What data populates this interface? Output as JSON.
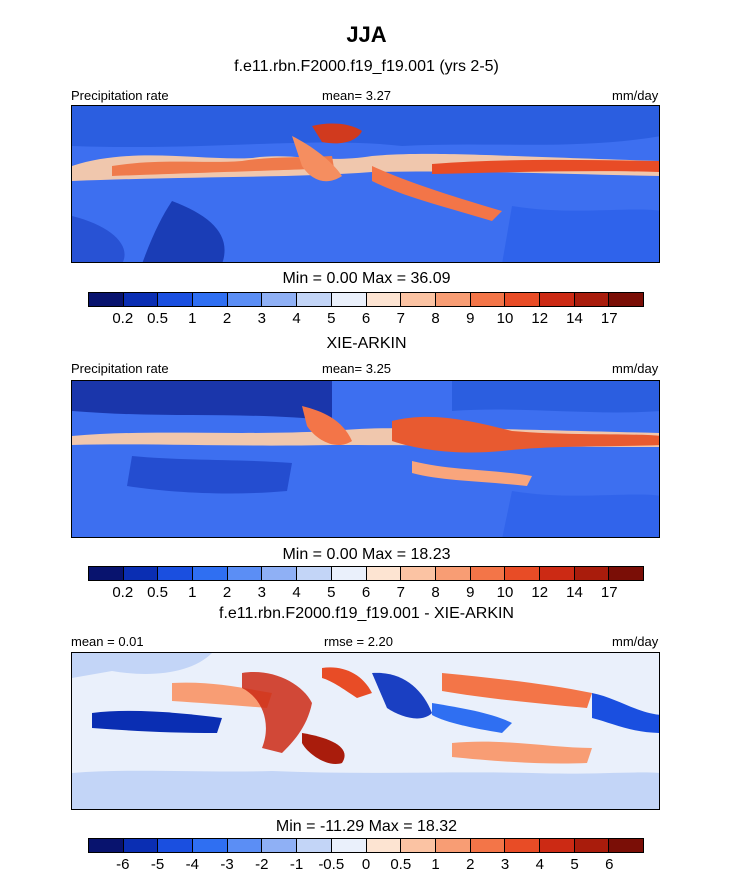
{
  "chart_data": {
    "type": "heatmap",
    "title": "JJA",
    "panels": [
      {
        "id": "model",
        "title": "f.e11.rbn.F2000.f19_f19.001 (yrs 2-5)",
        "left_label": "Precipitation rate",
        "center_label": "mean=   3.27",
        "units": "mm/day",
        "min_max": "Min =   0.00 Max =  36.09",
        "colorbar_ticks": [
          "0.2",
          "0.5",
          "1",
          "2",
          "3",
          "4",
          "5",
          "6",
          "7",
          "8",
          "9",
          "10",
          "12",
          "14",
          "17"
        ]
      },
      {
        "id": "obs",
        "title": "XIE-ARKIN",
        "left_label": "Precipitation rate",
        "center_label": "mean=   3.25",
        "units": "mm/day",
        "min_max": "Min =   0.00 Max =  18.23",
        "colorbar_ticks": [
          "0.2",
          "0.5",
          "1",
          "2",
          "3",
          "4",
          "5",
          "6",
          "7",
          "8",
          "9",
          "10",
          "12",
          "14",
          "17"
        ]
      },
      {
        "id": "diff",
        "title": "f.e11.rbn.F2000.f19_f19.001 - XIE-ARKIN",
        "left_label": "mean =   0.01",
        "center_label": "rmse =   2.20",
        "units": "mm/day",
        "min_max": "Min = -11.29 Max =  18.32",
        "colorbar_ticks": [
          "-6",
          "-5",
          "-4",
          "-3",
          "-2",
          "-1",
          "-0.5",
          "0",
          "0.5",
          "1",
          "2",
          "3",
          "4",
          "5",
          "6"
        ]
      }
    ],
    "precip_colors": [
      "#08136e",
      "#0a2eb3",
      "#1a4fe0",
      "#2f6ff2",
      "#5b8ef5",
      "#8fb0f5",
      "#c3d5f7",
      "#eaf0fb",
      "#fde4d2",
      "#fbc3a3",
      "#f89d74",
      "#f37548",
      "#e84c26",
      "#cc2a14",
      "#a91c0c",
      "#7a0e06"
    ],
    "diff_colors": [
      "#08136e",
      "#0a2eb3",
      "#1a4fe0",
      "#2f6ff2",
      "#5b8ef5",
      "#8fb0f5",
      "#c3d5f7",
      "#eaf0fb",
      "#fde4d2",
      "#fbc3a3",
      "#f89d74",
      "#f37548",
      "#e84c26",
      "#cc2a14",
      "#a91c0c",
      "#7a0e06"
    ]
  }
}
